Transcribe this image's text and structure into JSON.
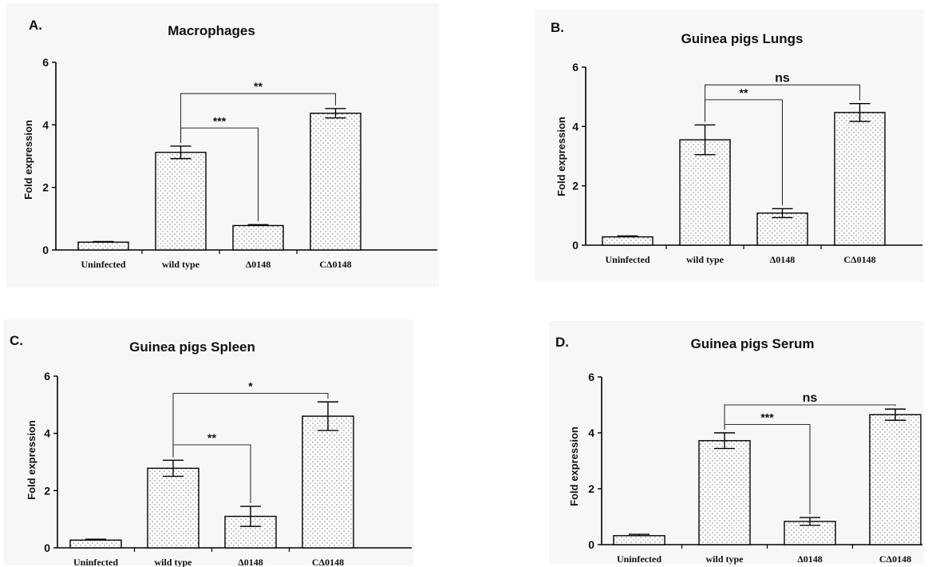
{
  "chart_data": [
    {
      "type": "bar",
      "panel": "A.",
      "title": "Macrophages",
      "ylabel": "Fold expression",
      "xlabel": "",
      "ylim": [
        0,
        6
      ],
      "yticks": [
        "0",
        "2",
        "4",
        "6"
      ],
      "categories": [
        "Uninfected",
        "wild type",
        "Δ0148",
        "CΔ0148"
      ],
      "values": [
        0.25,
        3.12,
        0.78,
        4.37
      ],
      "errors": [
        0.02,
        0.2,
        0.03,
        0.15
      ],
      "comparisons": [
        {
          "from": 1,
          "to": 2,
          "label": "***",
          "y": 3.9
        },
        {
          "from": 1,
          "to": 3,
          "label": "**",
          "y": 5.0
        }
      ]
    },
    {
      "type": "bar",
      "panel": "B.",
      "title": "Guinea pigs Lungs",
      "ylabel": "Fold expression",
      "xlabel": "",
      "ylim": [
        0,
        6
      ],
      "yticks": [
        "0",
        "2",
        "4",
        "6"
      ],
      "categories": [
        "Uninfected",
        "wild type",
        "Δ0148",
        "CΔ0148"
      ],
      "values": [
        0.28,
        3.55,
        1.08,
        4.47
      ],
      "errors": [
        0.03,
        0.5,
        0.15,
        0.3
      ],
      "comparisons": [
        {
          "from": 1,
          "to": 2,
          "label": "**",
          "y": 4.9
        },
        {
          "from": 1,
          "to": 3,
          "label": "ns",
          "y": 5.4
        }
      ]
    },
    {
      "type": "bar",
      "panel": "C.",
      "title": "Guinea pigs Spleen",
      "ylabel": "Fold expression",
      "xlabel": "",
      "ylim": [
        0,
        6
      ],
      "yticks": [
        "0",
        "2",
        "4",
        "6"
      ],
      "categories": [
        "Uninfected",
        "wild type",
        "Δ0148",
        "CΔ0148"
      ],
      "values": [
        0.27,
        2.78,
        1.1,
        4.6
      ],
      "errors": [
        0.03,
        0.28,
        0.35,
        0.5
      ],
      "comparisons": [
        {
          "from": 1,
          "to": 2,
          "label": "**",
          "y": 3.6
        },
        {
          "from": 1,
          "to": 3,
          "label": "*",
          "y": 5.4
        }
      ]
    },
    {
      "type": "bar",
      "panel": "D.",
      "title": "Guinea pigs Serum",
      "ylabel": "Fold expression",
      "xlabel": "",
      "ylim": [
        0,
        6
      ],
      "yticks": [
        "0",
        "2",
        "4",
        "6"
      ],
      "categories": [
        "Uninfected",
        "wild type",
        "Δ0148",
        "CΔ0148"
      ],
      "values": [
        0.32,
        3.72,
        0.83,
        4.65
      ],
      "errors": [
        0.05,
        0.28,
        0.14,
        0.2
      ],
      "comparisons": [
        {
          "from": 1,
          "to": 2,
          "label": "***",
          "y": 4.3
        },
        {
          "from": 1,
          "to": 3,
          "label": "ns",
          "y": 5.0
        }
      ]
    }
  ]
}
